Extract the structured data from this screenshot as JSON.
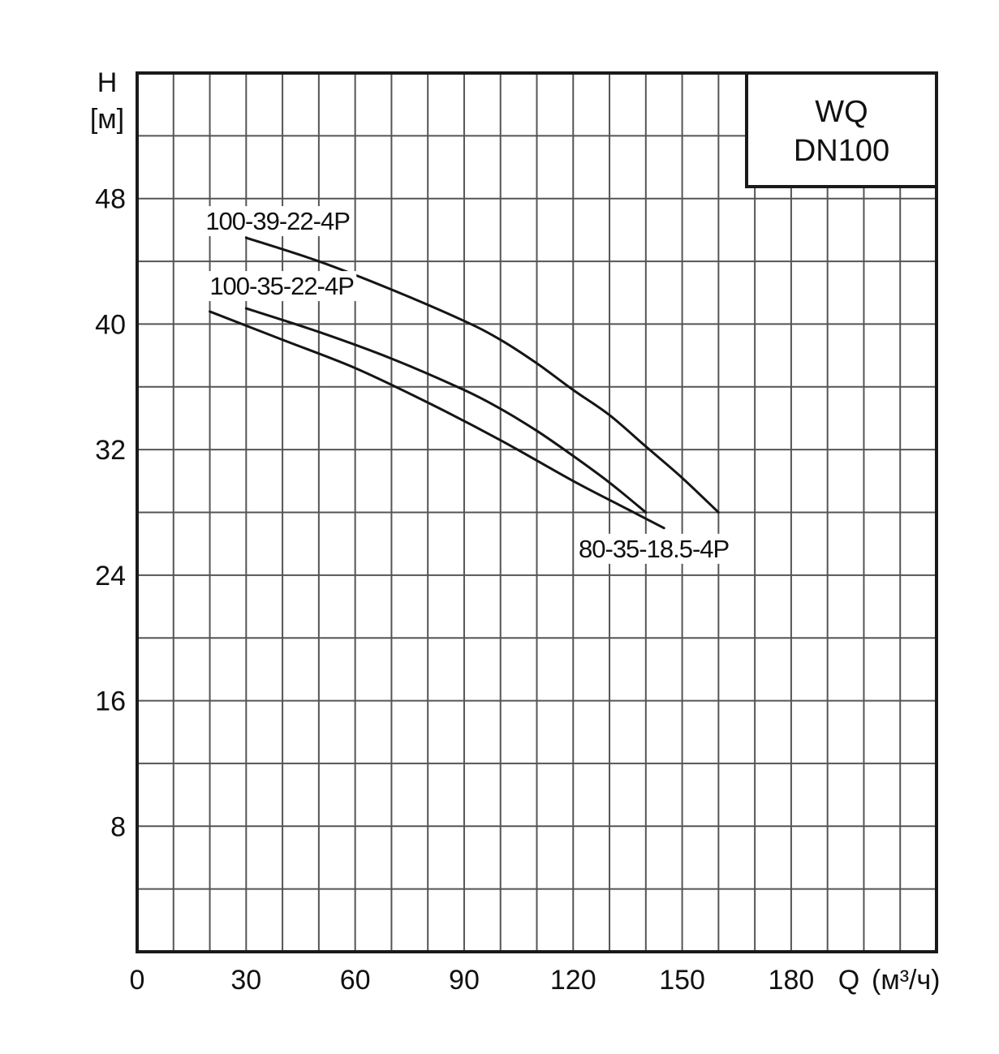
{
  "chart_data": {
    "type": "line",
    "title": "",
    "model_box": {
      "line1": "WQ",
      "line2": "DN100"
    },
    "ylabel": {
      "symbol": "H",
      "unit": "[м]"
    },
    "xlabel": {
      "symbol": "Q",
      "unit": "(м³/ч)"
    },
    "xlim": [
      0,
      220
    ],
    "ylim": [
      0,
      56
    ],
    "x_ticks": [
      {
        "value": 0,
        "label": "0"
      },
      {
        "value": 30,
        "label": "30"
      },
      {
        "value": 60,
        "label": "60"
      },
      {
        "value": 90,
        "label": "90"
      },
      {
        "value": 120,
        "label": "120"
      },
      {
        "value": 150,
        "label": "150"
      },
      {
        "value": 180,
        "label": "180"
      }
    ],
    "y_ticks": [
      {
        "value": 8,
        "label": "8"
      },
      {
        "value": 16,
        "label": "16"
      },
      {
        "value": 24,
        "label": "24"
      },
      {
        "value": 32,
        "label": "32"
      },
      {
        "value": 40,
        "label": "40"
      },
      {
        "value": 48,
        "label": "48"
      }
    ],
    "x_grid_step": 10,
    "y_grid_step": 4,
    "grid": true,
    "series": [
      {
        "name": "100-39-22-4P",
        "x": [
          30,
          50,
          70,
          90,
          100,
          110,
          120,
          130,
          140,
          150,
          160
        ],
        "y": [
          45.5,
          44.0,
          42.2,
          40.2,
          39.0,
          37.5,
          35.8,
          34.2,
          32.2,
          30.2,
          28.0
        ]
      },
      {
        "name": "100-35-22-4P",
        "x": [
          30,
          50,
          70,
          90,
          100,
          110,
          120,
          130,
          140
        ],
        "y": [
          41.0,
          39.5,
          37.8,
          35.8,
          34.6,
          33.2,
          31.6,
          29.9,
          28.0
        ]
      },
      {
        "name": "80-35-18.5-4P",
        "x": [
          20,
          40,
          60,
          80,
          100,
          120,
          135,
          145
        ],
        "y": [
          40.8,
          39.0,
          37.2,
          35.0,
          32.6,
          30.0,
          28.2,
          27.0
        ]
      }
    ]
  }
}
